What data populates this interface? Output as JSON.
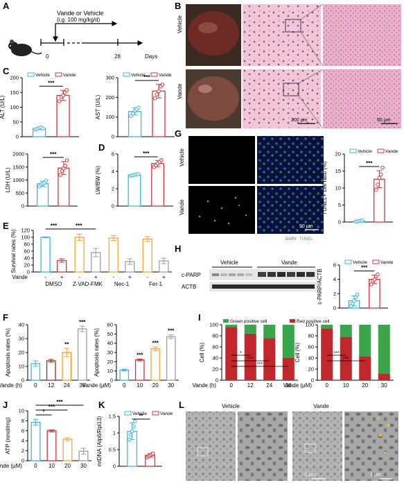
{
  "panel_letters": [
    "A",
    "B",
    "C",
    "D",
    "E",
    "F",
    "G",
    "H",
    "I",
    "J",
    "K",
    "L"
  ],
  "colors": {
    "vehicle": "#38b6e6",
    "vande": "#d6343d",
    "dose10": "#c8323a",
    "dose20": "#f0a53a",
    "dose30": "#9e9e9e",
    "green_bar": "#3aa54a",
    "red_bar": "#c1272d",
    "time12": "#9a2a2a",
    "time24": "#ff9a1f",
    "time36": "#9e9e9e"
  },
  "panelA": {
    "treatment": "Vande or Vehicle",
    "dose": "(i.g. 100 mg/kg/d)",
    "ticks": [
      "0",
      "28"
    ],
    "unit": "Days"
  },
  "panelB": {
    "rows": [
      "Vehicle",
      "Vande"
    ],
    "scale_left": "200 μm",
    "scale_right": "50 μm"
  },
  "panelG": {
    "rows": [
      "Vehicle",
      "Vande"
    ],
    "scale": "50 μm",
    "stain_dapi": "DAPI/",
    "stain_tunel": "TUNEL"
  },
  "panelH": {
    "groups": [
      "Vehicle",
      "Vande"
    ],
    "bands": [
      "c-PARP",
      "ACTB"
    ]
  },
  "panelL": {
    "groups": [
      "Vehicle",
      "Vande"
    ],
    "scale_left": "5 μm",
    "scale_right": "1 μm"
  },
  "significance": {
    "alt": "***",
    "ast": "***",
    "ldh": "***",
    "lwbw": "***",
    "tunel": "***",
    "cparp": "***",
    "mtdna": "**"
  },
  "chart_data": [
    {
      "id": "C-ALT",
      "type": "bar",
      "ylabel": "ALT (U/L)",
      "ylim": [
        0,
        200
      ],
      "yticks": [
        0,
        50,
        100,
        150,
        200
      ],
      "legend": [
        "Vehicle",
        "Vande"
      ],
      "categories": [
        "Vehicle",
        "Vande"
      ],
      "values": [
        28,
        140
      ],
      "err": [
        4,
        17
      ],
      "points": [
        [
          25,
          27,
          30,
          31,
          28
        ],
        [
          120,
          135,
          140,
          150,
          158
        ]
      ]
    },
    {
      "id": "C-AST",
      "type": "bar",
      "ylabel": "AST (U/L)",
      "ylim": [
        0,
        300
      ],
      "yticks": [
        0,
        100,
        200,
        300
      ],
      "legend": [
        "Vehicle",
        "Vande"
      ],
      "categories": [
        "Vehicle",
        "Vande"
      ],
      "values": [
        128,
        232
      ],
      "err": [
        18,
        35
      ],
      "points": [
        [
          105,
          118,
          132,
          140,
          148
        ],
        [
          195,
          215,
          232,
          255,
          265
        ]
      ]
    },
    {
      "id": "C-LDH",
      "type": "bar",
      "ylabel": "LDH (U/L)",
      "ylim": [
        0,
        2000
      ],
      "yticks": [
        0,
        500,
        1000,
        1500,
        2000
      ],
      "categories": [
        "Vehicle",
        "Vande"
      ],
      "values": [
        860,
        1460
      ],
      "err": [
        100,
        250
      ],
      "points": [
        [
          750,
          830,
          860,
          900,
          970
        ],
        [
          1200,
          1350,
          1450,
          1550,
          1760
        ]
      ]
    },
    {
      "id": "D-LWBW",
      "type": "bar",
      "ylabel": "LW/BW (%)",
      "ylim": [
        0,
        6
      ],
      "yticks": [
        0,
        2,
        4,
        6
      ],
      "categories": [
        "Vehicle",
        "Vande"
      ],
      "values": [
        3.6,
        4.9
      ],
      "err": [
        0.1,
        0.35
      ],
      "points": [
        [
          3.5,
          3.55,
          3.6,
          3.65,
          3.7
        ],
        [
          4.5,
          4.7,
          4.9,
          5.1,
          5.3
        ]
      ]
    },
    {
      "id": "E",
      "type": "bar",
      "ylabel": "Survival rates (%)",
      "ylim": [
        0,
        120
      ],
      "yticks": [
        0,
        20,
        40,
        60,
        80,
        100,
        120
      ],
      "row_label": "Vande",
      "signs": [
        "-",
        "+",
        "-",
        "+",
        "-",
        "+",
        "-",
        "+"
      ],
      "groups": [
        "DMSO",
        "Z-VAD-FMK",
        "Nec-1",
        "Fer-1"
      ],
      "values": [
        100,
        33,
        100,
        56,
        98,
        30,
        95,
        32
      ],
      "err": [
        1,
        5,
        9,
        12,
        7,
        8,
        7,
        8
      ],
      "sig": [
        {
          "label": "***",
          "from": 0,
          "to": 1
        },
        {
          "label": "***",
          "from": 1,
          "to": 3
        }
      ]
    },
    {
      "id": "F-time",
      "type": "bar",
      "ylabel": "Apoptosis rates (%)",
      "ylim": [
        0,
        40
      ],
      "yticks": [
        0,
        10,
        20,
        30,
        40
      ],
      "xlabel": "Vande (h)",
      "categories": [
        "0",
        "12",
        "24",
        "36"
      ],
      "values": [
        12,
        14,
        20,
        37
      ],
      "err": [
        2,
        1,
        3,
        2
      ],
      "sig": [
        "",
        "",
        "**",
        "***"
      ]
    },
    {
      "id": "F-dose",
      "type": "bar",
      "ylabel": "Apoptosis rates (%)",
      "ylim": [
        0,
        60
      ],
      "yticks": [
        0,
        10,
        20,
        30,
        40,
        50,
        60
      ],
      "xlabel": "Vande (μM)",
      "categories": [
        "0",
        "10",
        "20",
        "30"
      ],
      "values": [
        11,
        22,
        34,
        47
      ],
      "err": [
        1,
        1,
        2,
        2
      ],
      "sig": [
        "",
        "***",
        "***",
        "***"
      ]
    },
    {
      "id": "G-TUNEL",
      "type": "bar",
      "ylabel": "TUNEL+ cell ratio (%)",
      "ylim": [
        0,
        20
      ],
      "yticks": [
        0,
        5,
        10,
        15,
        20
      ],
      "legend": [
        "Vehicle",
        "Vande"
      ],
      "categories": [
        "Vehicle",
        "Vande"
      ],
      "values": [
        0.3,
        12.6
      ],
      "err": [
        0.2,
        2.5
      ],
      "points": [
        [
          0.1,
          0.2,
          0.3,
          0.4,
          0.5
        ],
        [
          9.5,
          11,
          13,
          14,
          16
        ]
      ]
    },
    {
      "id": "H-cPARP",
      "type": "bar",
      "ylabel": "c-PARP/ACTB",
      "ylim": [
        0,
        6
      ],
      "yticks": [
        0,
        2,
        4,
        6
      ],
      "legend": [
        "Vehicle",
        "Vande"
      ],
      "categories": [
        "Vehicle",
        "Vande"
      ],
      "values": [
        1.0,
        4.0
      ],
      "err": [
        0.7,
        0.6
      ],
      "points": [
        [
          0.3,
          0.6,
          1.0,
          1.5,
          1.9
        ],
        [
          3.3,
          3.8,
          4.0,
          4.4,
          4.7
        ]
      ]
    },
    {
      "id": "I-time",
      "type": "stacked-bar",
      "ylabel": "Cell (%)",
      "ylim": [
        0,
        100
      ],
      "yticks": [
        0,
        20,
        40,
        60,
        80,
        100
      ],
      "xlabel": "Vande (h)",
      "categories": [
        "0",
        "12",
        "24",
        "36"
      ],
      "legend": [
        "Green positive cell",
        "Red positive cell"
      ],
      "series": [
        {
          "name": "Red positive cell",
          "values": [
            96,
            84,
            76,
            40
          ]
        },
        {
          "name": "Green positive cell",
          "values": [
            4,
            16,
            24,
            60
          ]
        }
      ],
      "sig": [
        "*",
        "***",
        "***"
      ]
    },
    {
      "id": "I-dose",
      "type": "stacked-bar",
      "ylabel": "Cell (%)",
      "ylim": [
        0,
        100
      ],
      "yticks": [
        0,
        20,
        40,
        60,
        80,
        100
      ],
      "xlabel": "Vande (μM)",
      "categories": [
        "0",
        "10",
        "20",
        "30"
      ],
      "series": [
        {
          "name": "Red positive cell",
          "values": [
            93,
            78,
            43,
            12
          ]
        },
        {
          "name": "Green positive cell",
          "values": [
            7,
            22,
            57,
            88
          ]
        }
      ],
      "sig": [
        "***",
        "***"
      ]
    },
    {
      "id": "J-ATP",
      "type": "bar",
      "ylabel": "ATP (nmol/mg)",
      "ylim": [
        0,
        10
      ],
      "yticks": [
        0,
        2,
        4,
        6,
        8,
        10
      ],
      "xlabel": "Vande (μM)",
      "categories": [
        "0",
        "10",
        "20",
        "30"
      ],
      "values": [
        7.7,
        6.0,
        4.3,
        1.9
      ],
      "err": [
        0.6,
        0.2,
        0.3,
        0.6
      ],
      "sig": [
        {
          "label": "*",
          "from": 0,
          "to": 1
        },
        {
          "label": "***",
          "from": 0,
          "to": 2
        },
        {
          "label": "***",
          "from": 0,
          "to": 3
        }
      ]
    },
    {
      "id": "K-mtDNA",
      "type": "bar",
      "ylabel": "mtDNA (Atp6/Rpl13)",
      "ylim": [
        0,
        1.5
      ],
      "yticks": [
        0,
        0.5,
        1.0,
        1.5
      ],
      "legend": [
        "Vehicle",
        "Vande"
      ],
      "categories": [
        "Vehicle",
        "Vande"
      ],
      "values": [
        1.05,
        0.33
      ],
      "err": [
        0.25,
        0.05
      ],
      "points": [
        [
          0.8,
          0.95,
          1.05,
          1.2,
          1.35
        ],
        [
          0.27,
          0.3,
          0.33,
          0.36,
          0.38
        ]
      ]
    }
  ]
}
